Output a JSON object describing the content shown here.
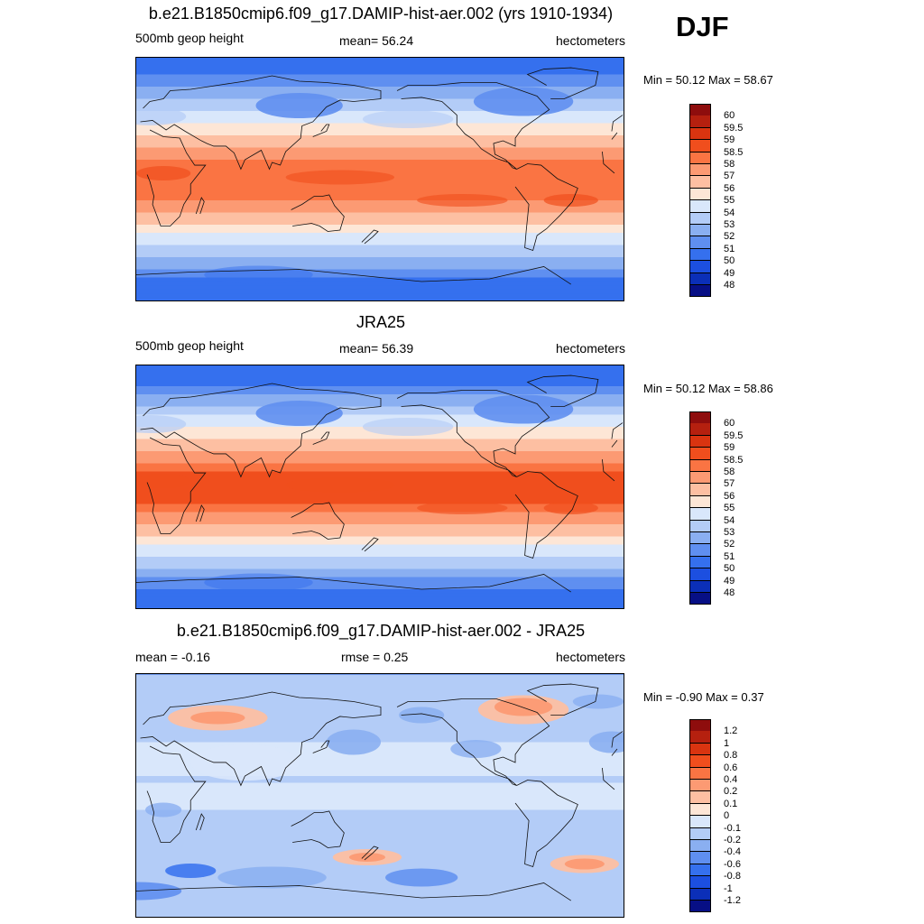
{
  "season": "DJF",
  "panels": [
    {
      "id": "model",
      "title": "b.e21.B1850cmip6.f09_g17.DAMIP-hist-aer.002 (yrs 1910-1934)",
      "left_label": "500mb geop height",
      "center_label": "mean=  56.24",
      "right_label": "hectometers",
      "minmax": "Min =  50.12 Max =  58.67",
      "variable": "500mb geopotential height",
      "colorbar_levels": [
        "60",
        "59.5",
        "59",
        "58.5",
        "58",
        "57",
        "56",
        "55",
        "54",
        "53",
        "52",
        "51",
        "50",
        "49",
        "48"
      ],
      "colorbar_colors": [
        "#8e0d0d",
        "#b5200f",
        "#d93410",
        "#f04e1d",
        "#fa7443",
        "#fc9a73",
        "#fdbfa2",
        "#fde6d6",
        "#d9e7fb",
        "#b3ccf7",
        "#8aaff1",
        "#5f8ff0",
        "#3570ee",
        "#1c4fe0",
        "#0b2fb8",
        "#070f85"
      ],
      "field": {
        "equator": 58.2,
        "pole_north": 50.6,
        "pole_south": 50.4,
        "north_jet": 33,
        "south_jet": 35
      }
    },
    {
      "id": "obs",
      "title": "JRA25",
      "left_label": "500mb geop height",
      "center_label": "mean=  56.39",
      "right_label": "hectometers",
      "minmax": "Min =  50.12 Max =  58.86",
      "variable": "500mb geopotential height",
      "colorbar_levels": [
        "60",
        "59.5",
        "59",
        "58.5",
        "58",
        "57",
        "56",
        "55",
        "54",
        "53",
        "52",
        "51",
        "50",
        "49",
        "48"
      ],
      "colorbar_colors": [
        "#8e0d0d",
        "#b5200f",
        "#d93410",
        "#f04e1d",
        "#fa7443",
        "#fc9a73",
        "#fdbfa2",
        "#fde6d6",
        "#d9e7fb",
        "#b3ccf7",
        "#8aaff1",
        "#5f8ff0",
        "#3570ee",
        "#1c4fe0",
        "#0b2fb8",
        "#070f85"
      ],
      "field": {
        "equator": 58.6,
        "pole_north": 50.5,
        "pole_south": 50.6,
        "north_jet": 32,
        "south_jet": 38
      }
    },
    {
      "id": "diff",
      "title": "b.e21.B1850cmip6.f09_g17.DAMIP-hist-aer.002 - JRA25",
      "left_label": "mean =  -0.16",
      "center_label": "rmse =   0.25",
      "right_label": "hectometers",
      "minmax": "Min =  -0.90 Max =   0.37",
      "variable": "difference",
      "colorbar_levels": [
        "1.2",
        "1",
        "0.8",
        "0.6",
        "0.4",
        "0.2",
        "0.1",
        "0",
        "-0.1",
        "-0.2",
        "-0.4",
        "-0.6",
        "-0.8",
        "-1",
        "-1.2"
      ],
      "colorbar_colors": [
        "#8e0d0d",
        "#b5200f",
        "#d93410",
        "#f04e1d",
        "#fa7443",
        "#fc9a73",
        "#fdbfa2",
        "#fde6d6",
        "#d9e7fb",
        "#b3ccf7",
        "#8aaff1",
        "#5f8ff0",
        "#3570ee",
        "#1c4fe0",
        "#0b2fb8",
        "#070f85"
      ]
    }
  ]
}
